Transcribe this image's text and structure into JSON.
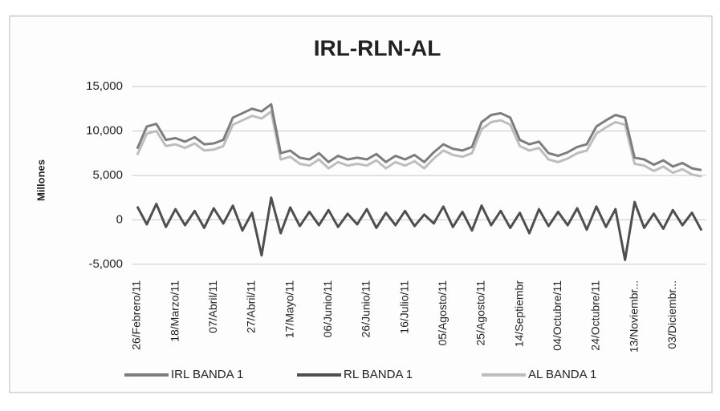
{
  "chart_data": {
    "type": "line",
    "title": "IRL-RLN-AL",
    "y_label": "Millones",
    "categories": [
      "26/Febrero/11",
      null,
      null,
      null,
      "18/Marzo/11",
      null,
      null,
      null,
      "07/Abril/11",
      null,
      null,
      null,
      "27/Abril/11",
      null,
      null,
      null,
      "17/Mayo/11",
      null,
      null,
      null,
      "06/Junio/11",
      null,
      null,
      null,
      "26/Junio/11",
      null,
      null,
      null,
      "16/Julio/11",
      null,
      null,
      null,
      "05/Agosto/11",
      null,
      null,
      null,
      "25/Agosto/11",
      null,
      null,
      null,
      "14/Septiembr",
      null,
      null,
      null,
      "04/Octubre/11",
      null,
      null,
      null,
      "24/Octubre/11",
      null,
      null,
      null,
      "13/Noviembr...",
      null,
      null,
      null,
      "03/Diciembr...",
      null,
      null,
      null
    ],
    "series": [
      {
        "name": "IRL BANDA 1",
        "color": "#7d7d7d",
        "values": [
          8000,
          10500,
          10800,
          9000,
          9200,
          8800,
          9300,
          8500,
          8600,
          9000,
          11500,
          12000,
          12500,
          12200,
          13000,
          7500,
          7800,
          7000,
          6800,
          7500,
          6500,
          7200,
          6800,
          7000,
          6800,
          7400,
          6500,
          7200,
          6800,
          7300,
          6500,
          7600,
          8500,
          8000,
          7800,
          8200,
          11000,
          11800,
          12000,
          11500,
          9000,
          8500,
          8800,
          7500,
          7200,
          7600,
          8200,
          8500,
          10500,
          11200,
          11800,
          11500,
          7000,
          6800,
          6200,
          6700,
          6000,
          6400,
          5800,
          5600
        ]
      },
      {
        "name": "RL BANDA 1",
        "color": "#4f4f4f",
        "values": [
          1500,
          -500,
          1800,
          -800,
          1200,
          -600,
          1000,
          -900,
          1300,
          -400,
          1600,
          -1200,
          800,
          -4000,
          2500,
          -1500,
          1400,
          -700,
          900,
          -600,
          1100,
          -800,
          700,
          -500,
          1200,
          -900,
          800,
          -600,
          1000,
          -700,
          600,
          -400,
          1500,
          -800,
          900,
          -1200,
          1600,
          -600,
          1000,
          -900,
          800,
          -1500,
          1200,
          -700,
          900,
          -600,
          1300,
          -1100,
          1500,
          -800,
          1200,
          -4500,
          2000,
          -900,
          700,
          -1000,
          1100,
          -600,
          800,
          -1200
        ]
      },
      {
        "name": "AL BANDA 1",
        "color": "#bdbdbd",
        "values": [
          7300,
          9700,
          10000,
          8300,
          8500,
          8100,
          8600,
          7800,
          7900,
          8300,
          10700,
          11200,
          11700,
          11400,
          12200,
          6800,
          7100,
          6300,
          6100,
          6800,
          5800,
          6500,
          6100,
          6300,
          6100,
          6700,
          5800,
          6500,
          6100,
          6600,
          5800,
          6900,
          7800,
          7300,
          7100,
          7500,
          10200,
          11000,
          11200,
          10700,
          8300,
          7800,
          8100,
          6800,
          6500,
          6900,
          7500,
          7800,
          9700,
          10400,
          11000,
          10700,
          6300,
          6100,
          5500,
          6000,
          5300,
          5700,
          5100,
          4900
        ]
      }
    ],
    "ylim": [
      -6000,
      15000
    ],
    "yticks": [
      {
        "value": -5000,
        "label": "-5,000"
      },
      0,
      {
        "value": 5000,
        "label": "5,000"
      },
      {
        "value": 10000,
        "label": "10,000"
      },
      {
        "value": 15000,
        "label": "15,000"
      }
    ],
    "grid": true
  }
}
